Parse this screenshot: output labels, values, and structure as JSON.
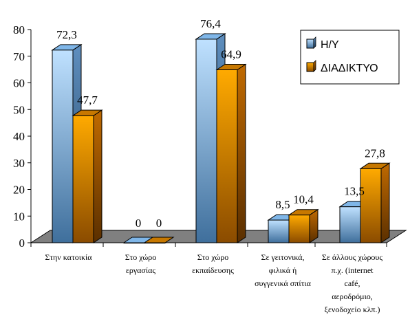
{
  "chart_data": {
    "type": "bar",
    "categories": [
      [
        "Στην κατοικία"
      ],
      [
        "Στο χώρο",
        "εργασίας"
      ],
      [
        "Στο  χώρο",
        "εκπαίδευσης"
      ],
      [
        "Σε γειτονικά,",
        "φιλικά ή",
        "συγγενικά σπίτια"
      ],
      [
        "Σε άλλους χώρους",
        "π.χ.  (internet",
        "café,",
        "αεροδρόμιο,",
        "ξενοδοχείο  κλπ.)"
      ]
    ],
    "series": [
      {
        "name": "Η/Υ",
        "values": [
          72.3,
          0,
          76.4,
          8.5,
          13.5
        ],
        "labels": [
          "72,3",
          "0",
          "76,4",
          "8,5",
          "13,5"
        ],
        "color": "#99ccff"
      },
      {
        "name": "ΔΙΑΔΙΚΤΥΟ",
        "values": [
          47.7,
          0,
          64.9,
          10.4,
          27.8
        ],
        "labels": [
          "47,7",
          "0",
          "64,9",
          "10,4",
          "27,8"
        ],
        "color": "#ff9900"
      }
    ],
    "ylim": [
      0,
      80
    ],
    "yticks": [
      "0",
      "10",
      "20",
      "30",
      "40",
      "50",
      "60",
      "70",
      "80"
    ],
    "legend_position": "top-right",
    "grid": false,
    "style": "3d",
    "floor_color": "#808080"
  }
}
